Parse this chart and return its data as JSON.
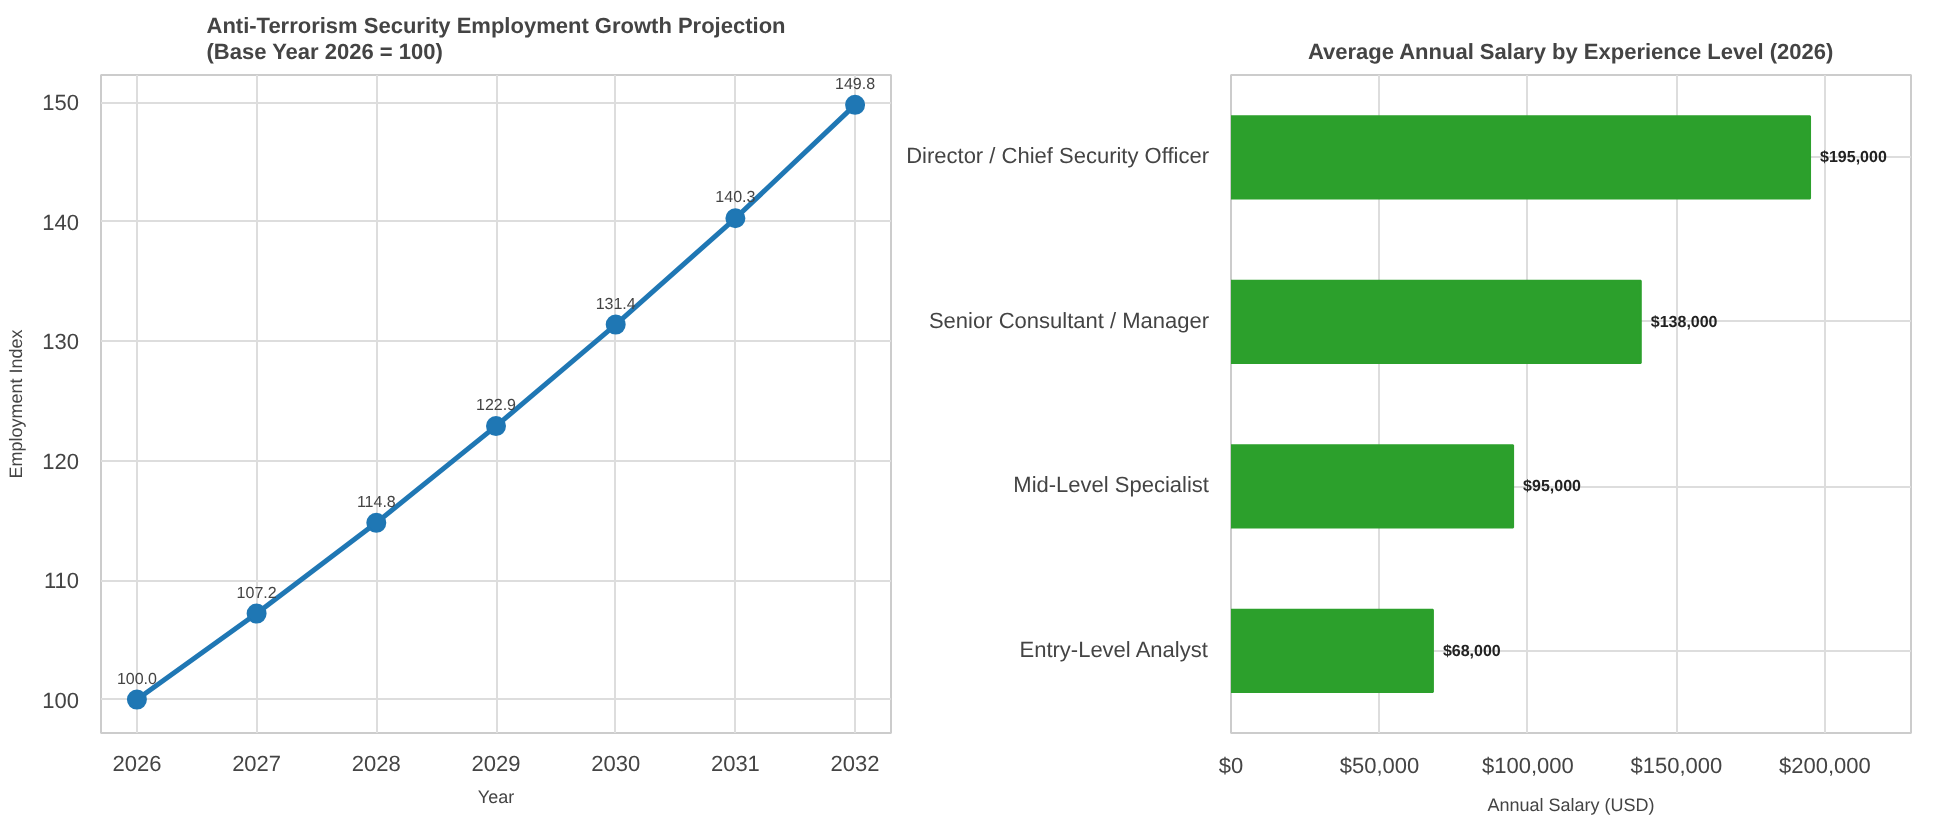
{
  "chart_data": [
    {
      "type": "line",
      "title": "Anti-Terrorism Security Employment Growth Projection\n(Base Year 2026 = 100)",
      "xlabel": "Year",
      "ylabel": "Employment Index",
      "x": [
        2026,
        2027,
        2028,
        2029,
        2030,
        2031,
        2032
      ],
      "series": [
        {
          "color": "#1f77b4",
          "values": [
            100.0,
            107.2,
            114.8,
            122.9,
            131.4,
            140.3,
            149.8
          ],
          "value_labels": [
            "100.0",
            "107.2",
            "114.8",
            "122.9",
            "131.4",
            "140.3",
            "149.8"
          ]
        }
      ],
      "xlim": [
        2025.7,
        2032.3
      ],
      "xticks": [
        2026,
        2027,
        2028,
        2029,
        2030,
        2031,
        2032
      ],
      "ylim": [
        97.2,
        152.3
      ],
      "yticks": [
        100,
        110,
        120,
        130,
        140,
        150
      ],
      "grid": true,
      "marker": "circle",
      "line_style": "solid"
    },
    {
      "type": "bar",
      "orientation": "horizontal",
      "title": "Average Annual Salary by Experience Level (2026)",
      "xlabel": "Annual Salary (USD)",
      "categories": [
        "Director / Chief Security Officer",
        "Senior Consultant / Manager",
        "Mid-Level Specialist",
        "Entry-Level Analyst"
      ],
      "values": [
        195000,
        138000,
        95000,
        68000
      ],
      "value_labels": [
        "$195,000",
        "$138,000",
        "$95,000",
        "$68,000"
      ],
      "color": "#2ca02c",
      "xlim": [
        0,
        229000
      ],
      "xticks": [
        {
          "value": 0,
          "label": "$0"
        },
        {
          "value": 50000,
          "label": "$50,000"
        },
        {
          "value": 100000,
          "label": "$100,000"
        },
        {
          "value": 150000,
          "label": "$150,000"
        },
        {
          "value": 200000,
          "label": "$200,000"
        }
      ],
      "grid": true
    }
  ]
}
